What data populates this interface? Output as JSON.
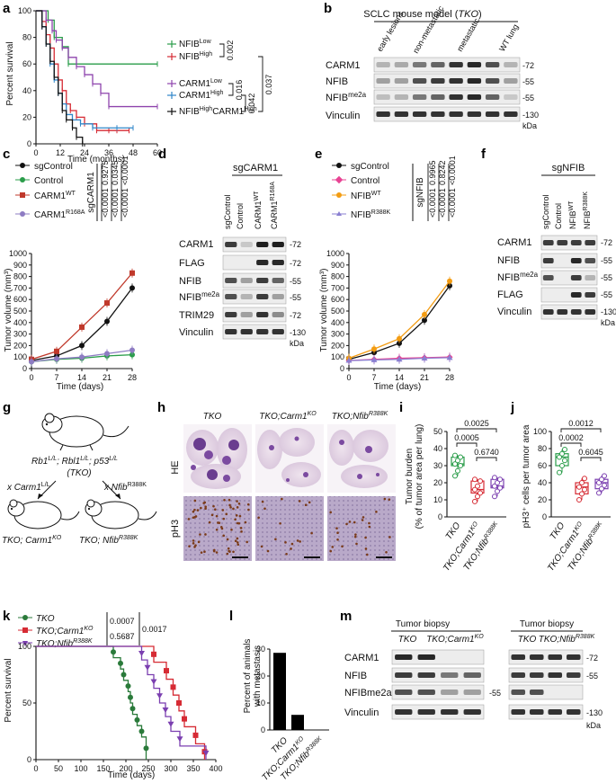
{
  "panels": {
    "a": "a",
    "b": "b",
    "c": "c",
    "d": "d",
    "e": "e",
    "f": "f",
    "g": "g",
    "h": "h",
    "i": "i",
    "j": "j",
    "k": "k",
    "l": "l",
    "m": "m"
  },
  "colors": {
    "green": "#2a9d4a",
    "red": "#d62b34",
    "purple": "#8e44ad",
    "blue": "#2f86c9",
    "black": "#111111",
    "orange": "#f39c12",
    "pink": "#e84393",
    "lightpurple": "#8a7fd1",
    "darkred": "#c0392b"
  },
  "panel_a": {
    "ylabel": "Percent survival",
    "xlabel": "Time (months)",
    "legend": [
      {
        "text": "NFIB",
        "sup": "Low",
        "color": "#2a9d4a"
      },
      {
        "text": "NFIB",
        "sup": "High",
        "color": "#d62b34"
      },
      {
        "text": "CARM1",
        "sup": "Low",
        "color": "#8e44ad"
      },
      {
        "text": "CARM1",
        "sup": "High",
        "color": "#2f86c9"
      },
      {
        "text": "NFIB",
        "sup": "High",
        "text2": "CARM1",
        "sup2": "High",
        "color": "#111111"
      }
    ],
    "pvalues": [
      "0.002",
      "0.016",
      "0.042",
      "0.037"
    ]
  },
  "panel_b": {
    "title": "SCLC mouse model (",
    "title_it": "TKO",
    "title_end": ")",
    "columns": [
      "early lesions",
      "non-metastatic",
      "metastatic",
      "WT lung"
    ],
    "rows": [
      "CARM1",
      "NFIB",
      "NFIB",
      "Vinculin"
    ],
    "row3_sup": "me2a",
    "markers": [
      "-72",
      "-55",
      "-55",
      "-130"
    ],
    "kda": "kDa"
  },
  "panel_c": {
    "ylabel": "Tumor volume (mm³)",
    "xlabel": "Time (days)",
    "legend": [
      "sgControl",
      "Control",
      "CARM1",
      "CARM1"
    ],
    "legend_sups": [
      "",
      "",
      "WT",
      "R168A"
    ],
    "group_label": "sgCARM1",
    "pvalues": [
      "<0.0001",
      "0.9275",
      "<0.0001",
      "0.0345",
      "<0.0001",
      "<0.0001"
    ]
  },
  "panel_d": {
    "group": "sgCARM1",
    "columns": [
      "sgControl",
      "Control",
      "CARM1",
      "CARM1"
    ],
    "col_sups": [
      "",
      "",
      "WT",
      "R168A"
    ],
    "rows": [
      "CARM1",
      "FLAG",
      "NFIB",
      "NFIB",
      "TRIM29",
      "Vinculin"
    ],
    "row4_sup": "me2a",
    "markers": [
      "-72",
      "-72",
      "-55",
      "-55",
      "-72",
      "-130"
    ],
    "kda": "kDa"
  },
  "panel_e": {
    "ylabel": "Tumor volume (mm³)",
    "xlabel": "Time (days)",
    "legend": [
      "sgControl",
      "Control",
      "NFIB",
      "NFIB"
    ],
    "legend_sups": [
      "",
      "",
      "WT",
      "R388K"
    ],
    "group_label": "sgNFIB",
    "pvalues": [
      "<0.0001",
      "0.9965",
      "<0.0001",
      "0.8242",
      "<0.0001",
      "<0.0001"
    ]
  },
  "panel_f": {
    "group": "sgNFIB",
    "columns": [
      "sgControl",
      "Control",
      "NFIB",
      "NFIB"
    ],
    "col_sups": [
      "",
      "",
      "WT",
      "R388K"
    ],
    "rows": [
      "CARM1",
      "NFIB",
      "NFIB",
      "FLAG",
      "Vinculin"
    ],
    "row3_sup": "me2a",
    "markers": [
      "-72",
      "-55",
      "-55",
      "-55",
      "-130"
    ],
    "kda": "kDa"
  },
  "panel_g": {
    "genotype": "Rb1",
    "g1sup": "L/L",
    "g2": "; Rbl1",
    "g2sup": "L/L",
    "g3": "; p53",
    "g3sup": "L/L",
    "tko": "(TKO)",
    "cross1": "x Carm1",
    "cross1sup": "L/L",
    "cross2": "x Nfib",
    "cross2sup": "R388K",
    "left": "TKO; Carm1",
    "leftsup": "KO",
    "right": "TKO; Nfib",
    "rightsup": "R388K"
  },
  "panel_h": {
    "columns": [
      "TKO",
      "TKO;Carm1",
      "TKO;Nfib"
    ],
    "col_sups": [
      "",
      "KO",
      "R388K"
    ],
    "rows": [
      "HE",
      "pH3"
    ]
  },
  "panel_i": {
    "ylabel1": "Tumor burden",
    "ylabel2": "(% of tumor area per lung)",
    "groups": [
      "TKO",
      "TKO;Carm1",
      "TKO;Nfib"
    ],
    "group_sups": [
      "",
      "KO",
      "R388K"
    ],
    "pvalues": [
      "0.0025",
      "0.0005",
      "0.6740"
    ]
  },
  "panel_j": {
    "ylabel": "pH3⁺ cells per tumor area",
    "groups": [
      "TKO",
      "TKO;Carm1",
      "TKO;Nfib"
    ],
    "group_sups": [
      "",
      "KO",
      "R388K"
    ],
    "pvalues": [
      "0.0012",
      "0.0002",
      "0.6045"
    ]
  },
  "panel_k": {
    "ylabel": "Percent survival",
    "xlabel": "Time (days)",
    "legend": [
      "TKO",
      "TKO;Carm1",
      "TKO;Nfib"
    ],
    "legend_sups": [
      "",
      "KO",
      "R388K"
    ],
    "pvalues": [
      "0.0007",
      "0.5687",
      "0.0017"
    ]
  },
  "panel_l": {
    "ylabel1": "Percent of animals",
    "ylabel2": "with metastasis",
    "groups": [
      "TKO",
      "TKO;Carm1",
      "TKO;Nfib"
    ],
    "group_sups": [
      "",
      "KO",
      "R388K"
    ]
  },
  "panel_m": {
    "header": "Tumor biopsy",
    "left_cols": [
      "TKO",
      "TKO;Carm1"
    ],
    "left_sup": "KO",
    "right_cols": [
      "TKO",
      "TKO;Nfib"
    ],
    "right_sup": "R388K",
    "rows": [
      "CARM1",
      "NFIB",
      "NFIBme2a",
      "Vinculin"
    ],
    "markers": [
      "-72",
      "-55",
      "-55",
      "-130"
    ],
    "kda": "kDa"
  },
  "chart_data": [
    {
      "panel": "a",
      "type": "line",
      "step": true,
      "xlabel": "Time (months)",
      "ylabel": "Percent survival",
      "xlim": [
        0,
        60
      ],
      "ylim": [
        0,
        100
      ],
      "xticks": [
        0,
        12,
        24,
        36,
        48,
        60
      ],
      "yticks": [
        0,
        20,
        40,
        60,
        80,
        100
      ],
      "series": [
        {
          "name": "NFIB Low",
          "color": "#2a9d4a",
          "x": [
            0,
            6,
            9,
            13,
            16,
            60
          ],
          "y": [
            100,
            93,
            80,
            73,
            60,
            60
          ]
        },
        {
          "name": "NFIB High",
          "color": "#d62b34",
          "x": [
            0,
            3,
            5,
            7,
            9,
            11,
            13,
            15,
            17,
            20,
            24,
            30,
            36,
            40,
            46
          ],
          "y": [
            100,
            92,
            82,
            72,
            60,
            48,
            40,
            30,
            25,
            20,
            15,
            10,
            10,
            10,
            10
          ]
        },
        {
          "name": "CARM1 Low",
          "color": "#8e44ad",
          "x": [
            0,
            5,
            8,
            10,
            13,
            16,
            20,
            24,
            28,
            32,
            36,
            60
          ],
          "y": [
            100,
            93,
            85,
            78,
            72,
            65,
            58,
            52,
            45,
            38,
            28,
            28
          ]
        },
        {
          "name": "CARM1 High",
          "color": "#2f86c9",
          "x": [
            0,
            3,
            5,
            7,
            9,
            11,
            13,
            15,
            18,
            22,
            28,
            40,
            48
          ],
          "y": [
            100,
            88,
            75,
            60,
            48,
            38,
            30,
            22,
            18,
            15,
            12,
            12,
            12
          ]
        },
        {
          "name": "NFIB High CARM1 High",
          "color": "#111111",
          "x": [
            0,
            3,
            5,
            7,
            9,
            11,
            13,
            15,
            18,
            20,
            23
          ],
          "y": [
            100,
            88,
            75,
            62,
            50,
            38,
            25,
            18,
            12,
            5,
            0
          ]
        }
      ]
    },
    {
      "panel": "c",
      "type": "line",
      "xlabel": "Time (days)",
      "ylabel": "Tumor volume (mm³)",
      "x": [
        0,
        7,
        14,
        21,
        28
      ],
      "ylim": [
        0,
        1000
      ],
      "yticks": [
        0,
        100,
        200,
        300,
        400,
        500,
        600,
        700,
        800,
        900,
        1000
      ],
      "series": [
        {
          "name": "sgControl",
          "color": "#111111",
          "values": [
            70,
            110,
            200,
            410,
            700
          ]
        },
        {
          "name": "Control",
          "color": "#2a9d4a",
          "values": [
            60,
            80,
            90,
            110,
            120
          ]
        },
        {
          "name": "CARM1 WT",
          "color": "#c0392b",
          "values": [
            80,
            150,
            360,
            570,
            830
          ]
        },
        {
          "name": "CARM1 R168A",
          "color": "#8e7cc3",
          "values": [
            60,
            85,
            100,
            130,
            160
          ]
        }
      ]
    },
    {
      "panel": "e",
      "type": "line",
      "xlabel": "Time (days)",
      "ylabel": "Tumor volume (mm³)",
      "x": [
        0,
        7,
        14,
        21,
        28
      ],
      "ylim": [
        0,
        1000
      ],
      "yticks": [
        0,
        100,
        200,
        300,
        400,
        500,
        600,
        700,
        800,
        900,
        1000
      ],
      "series": [
        {
          "name": "sgControl",
          "color": "#111111",
          "values": [
            80,
            140,
            220,
            420,
            720
          ]
        },
        {
          "name": "Control",
          "color": "#e84393",
          "values": [
            70,
            80,
            90,
            95,
            100
          ]
        },
        {
          "name": "NFIB WT",
          "color": "#f39c12",
          "values": [
            90,
            170,
            260,
            470,
            760
          ]
        },
        {
          "name": "NFIB R388K",
          "color": "#8a7fd1",
          "values": [
            70,
            75,
            80,
            90,
            95
          ]
        }
      ]
    },
    {
      "panel": "i",
      "type": "scatter",
      "ylabel": "Tumor burden (% of tumor area per lung)",
      "ylim": [
        0,
        50
      ],
      "yticks": [
        0,
        10,
        20,
        30,
        40,
        50
      ],
      "categories": [
        "TKO",
        "TKO;Carm1 KO",
        "TKO;Nfib R388K"
      ],
      "series": [
        {
          "name": "TKO",
          "values": [
            24,
            27,
            30,
            31,
            33,
            35,
            36
          ]
        },
        {
          "name": "TKO;Carm1 KO",
          "values": [
            9,
            12,
            14,
            16,
            18,
            21,
            22
          ]
        },
        {
          "name": "TKO;Nfib R388K",
          "values": [
            12,
            15,
            17,
            18,
            20,
            22,
            23
          ]
        }
      ]
    },
    {
      "panel": "j",
      "type": "scatter",
      "ylabel": "pH3+ cells per tumor area",
      "ylim": [
        0,
        100
      ],
      "yticks": [
        0,
        20,
        40,
        60,
        80,
        100
      ],
      "categories": [
        "TKO",
        "TKO;Carm1 KO",
        "TKO;Nfib R388K"
      ],
      "series": [
        {
          "name": "TKO",
          "values": [
            52,
            60,
            66,
            70,
            74,
            79
          ]
        },
        {
          "name": "TKO;Carm1 KO",
          "values": [
            20,
            27,
            32,
            35,
            40,
            45
          ]
        },
        {
          "name": "TKO;Nfib R388K",
          "values": [
            28,
            33,
            37,
            40,
            44,
            48
          ]
        }
      ]
    },
    {
      "panel": "k",
      "type": "line",
      "step": true,
      "xlabel": "Time (days)",
      "ylabel": "Percent survival",
      "xlim": [
        0,
        400
      ],
      "ylim": [
        0,
        100
      ],
      "xticks": [
        0,
        50,
        100,
        150,
        200,
        250,
        300,
        350,
        400
      ],
      "yticks": [
        0,
        50,
        100
      ],
      "series": [
        {
          "name": "TKO",
          "color": "#2a7a3a",
          "x": [
            0,
            172,
            188,
            195,
            205,
            210,
            215,
            225,
            235,
            245
          ],
          "y": [
            100,
            90,
            80,
            70,
            60,
            50,
            40,
            30,
            20,
            0
          ]
        },
        {
          "name": "TKO;Carm1 KO",
          "color": "#d62b34",
          "x": [
            0,
            262,
            290,
            305,
            318,
            330,
            355,
            375
          ],
          "y": [
            100,
            86,
            71,
            57,
            43,
            29,
            14,
            0
          ]
        },
        {
          "name": "TKO;Nfib R388K",
          "color": "#7b3fb0",
          "x": [
            0,
            235,
            248,
            262,
            275,
            288,
            300,
            320,
            378
          ],
          "y": [
            100,
            88,
            75,
            63,
            50,
            38,
            25,
            12,
            0
          ]
        }
      ]
    },
    {
      "panel": "l",
      "type": "bar",
      "ylabel": "Percent of animals with metastasis",
      "ylim": [
        0,
        30
      ],
      "yticks": [
        0,
        10,
        20,
        30
      ],
      "categories": [
        "TKO",
        "TKO;Carm1 KO",
        "TKO;Nfib R388K"
      ],
      "values": [
        28.6,
        5.6,
        0
      ]
    }
  ]
}
